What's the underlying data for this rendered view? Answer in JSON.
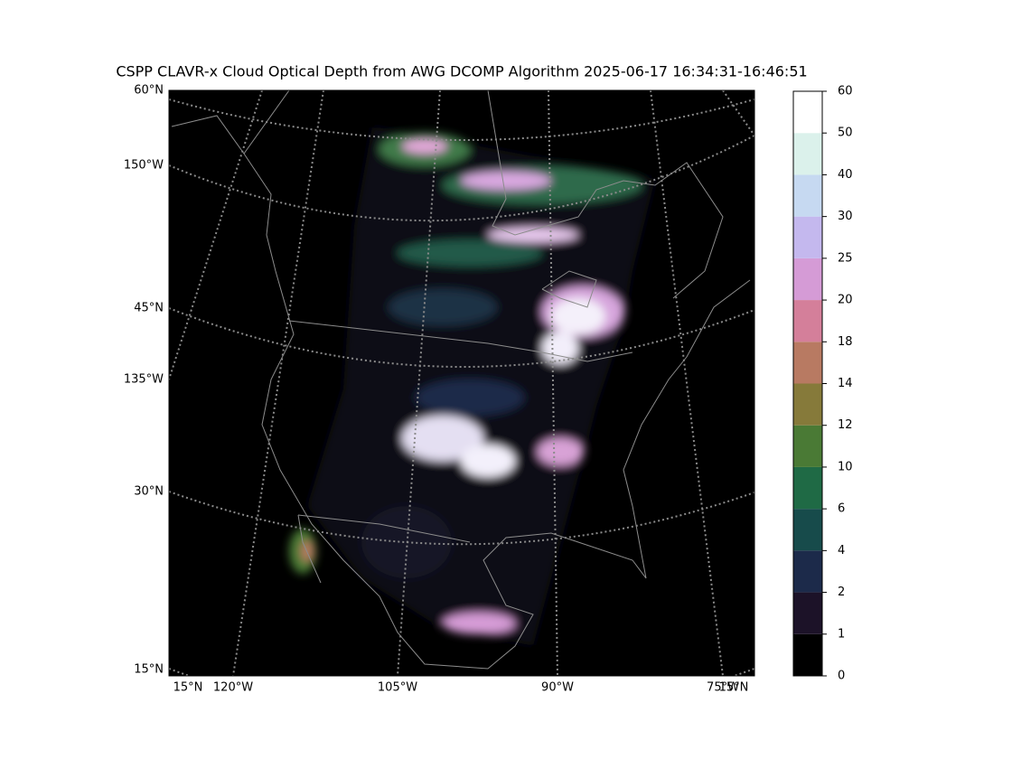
{
  "title": "CSPP CLAVR-x Cloud Optical Depth from AWG DCOMP Algorithm 2025-06-17 16:34:31-16:46:51",
  "map": {
    "left_labels": [
      "60°N",
      "150°W",
      "45°N",
      "135°W",
      "30°N",
      "15°N"
    ],
    "bottom_labels": [
      "15°N",
      "120°W",
      "105°W",
      "90°W",
      "75°W",
      "15°N"
    ]
  },
  "colorbar": {
    "boundaries": [
      0,
      1,
      2,
      4,
      6,
      10,
      12,
      14,
      18,
      20,
      25,
      30,
      40,
      50,
      60
    ],
    "colors": [
      "#000000",
      "#1c1228",
      "#1c2a4a",
      "#174b4b",
      "#1f6a45",
      "#4a7a35",
      "#867a3a",
      "#b87a62",
      "#d47f9a",
      "#d59bd6",
      "#c4b8ee",
      "#c6d9f1",
      "#dbf1eb",
      "#ffffff"
    ]
  }
}
